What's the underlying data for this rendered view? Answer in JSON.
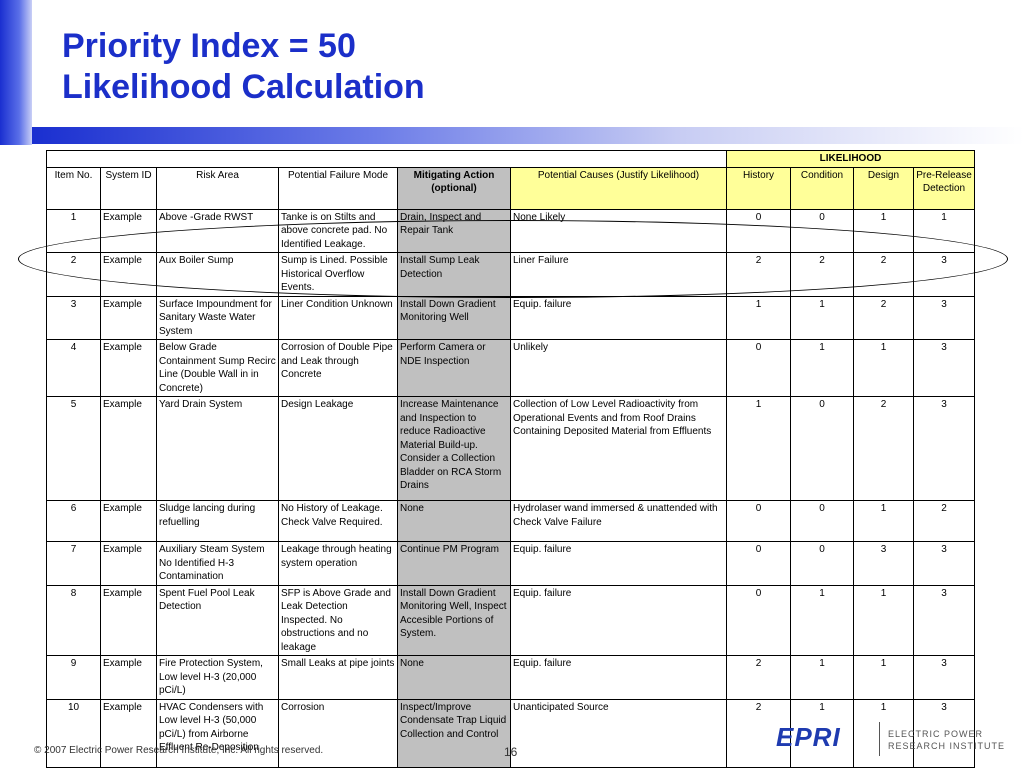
{
  "slide": {
    "title_line1": "Priority Index = 50",
    "title_line2": "Likelihood Calculation"
  },
  "table": {
    "group_header": "LIKELIHOOD",
    "columns": {
      "item_no": "Item No.",
      "system_id": "System ID",
      "risk_area": "Risk Area",
      "failure_mode": "Potential Failure Mode",
      "mitigating_action": "Mitigating Action (optional)",
      "potential_causes": "Potential Causes (Justify Likelihood)",
      "history": "History",
      "condition": "Condition",
      "design": "Design",
      "pre_release": "Pre-Release Detection"
    },
    "rows": [
      {
        "item": "1",
        "system": "Example",
        "area": "Above -Grade RWST",
        "failure": "Tanke is on Stilts and above concrete pad. No Identified Leakage.",
        "action": "Drain, Inspect and Repair Tank",
        "causes": "None Likely",
        "history": "0",
        "condition": "0",
        "design": "1",
        "pre": "1"
      },
      {
        "item": "2",
        "system": "Example",
        "area": "Aux Boiler Sump",
        "failure": "Sump is Lined. Possible Historical Overflow Events.",
        "action": "Install Sump Leak Detection",
        "causes": "Liner Failure",
        "history": "2",
        "condition": "2",
        "design": "2",
        "pre": "3"
      },
      {
        "item": "3",
        "system": "Example",
        "area": "Surface Impoundment for Sanitary Waste Water System",
        "failure": "Liner Condition Unknown",
        "action": "Install Down Gradient Monitoring Well",
        "causes": "Equip. failure",
        "history": "1",
        "condition": "1",
        "design": "2",
        "pre": "3"
      },
      {
        "item": "4",
        "system": "Example",
        "area": "Below Grade Containment Sump Recirc Line (Double Wall in in Concrete)",
        "failure": "Corrosion of Double Pipe and Leak through Concrete",
        "action": "Perform Camera or NDE Inspection",
        "causes": "Unlikely",
        "history": "0",
        "condition": "1",
        "design": "1",
        "pre": "3"
      },
      {
        "item": "5",
        "system": "Example",
        "area": "Yard Drain System",
        "failure": "Design Leakage",
        "action": "Increase Maintenance and Inspection to reduce Radioactive Material Build-up. Consider a Collection Bladder on RCA Storm  Drains",
        "causes": "Collection of Low Level Radioactivity from Operational Events and from Roof Drains Containing Deposited Material from Effluents",
        "history": "1",
        "condition": "0",
        "design": "2",
        "pre": "3"
      },
      {
        "item": "6",
        "system": "Example",
        "area": "Sludge lancing during refuelling",
        "failure": "No History of Leakage. Check Valve Required.",
        "action": "None",
        "causes": "Hydrolaser wand immersed & unattended with Check Valve Failure",
        "history": "0",
        "condition": "0",
        "design": "1",
        "pre": "2"
      },
      {
        "item": "7",
        "system": "Example",
        "area": "Auxiliary Steam System No Identified H-3 Contamination",
        "failure": "Leakage through heating system operation",
        "action": "Continue PM Program",
        "causes": "Equip. failure",
        "history": "0",
        "condition": "0",
        "design": "3",
        "pre": "3"
      },
      {
        "item": "8",
        "system": "Example",
        "area": "Spent Fuel Pool Leak Detection",
        "failure": "SFP is Above Grade and Leak Detection Inspected.  No obstructions and no leakage",
        "action": "Install Down Gradient Monitoring Well, Inspect Accesible Portions of System.",
        "causes": "Equip. failure",
        "history": "0",
        "condition": "1",
        "design": "1",
        "pre": "3"
      },
      {
        "item": "9",
        "system": "Example",
        "area": "Fire Protection System, Low level H-3 (20,000 pCi/L)",
        "failure": "Small Leaks at pipe joints",
        "action": "None",
        "causes": "Equip. failure",
        "history": "2",
        "condition": "1",
        "design": "1",
        "pre": "3"
      },
      {
        "item": "10",
        "system": "Example",
        "area": "HVAC Condensers with Low level H-3 (50,000 pCi/L) from Airborne Effluent Re-Deposition",
        "failure": "Corrosion",
        "action": "Inspect/Improve Condensate Trap Liquid Collection and Control",
        "causes": "Unanticipated Source",
        "history": "2",
        "condition": "1",
        "design": "1",
        "pre": "3"
      }
    ]
  },
  "footer": {
    "copyright": "© 2007 Electric Power Research Institute, Inc. All rights reserved.",
    "page_number": "16"
  },
  "logo": {
    "wordmark": "EPRI",
    "line1": "ELECTRIC POWER",
    "line2": "RESEARCH INSTITUTE"
  },
  "colors": {
    "title": "#1b2fc9",
    "mitigating_shade": "#c0c0c0",
    "highlight_yellow": "#ffff99",
    "logo_blue": "#1f3bb0"
  }
}
